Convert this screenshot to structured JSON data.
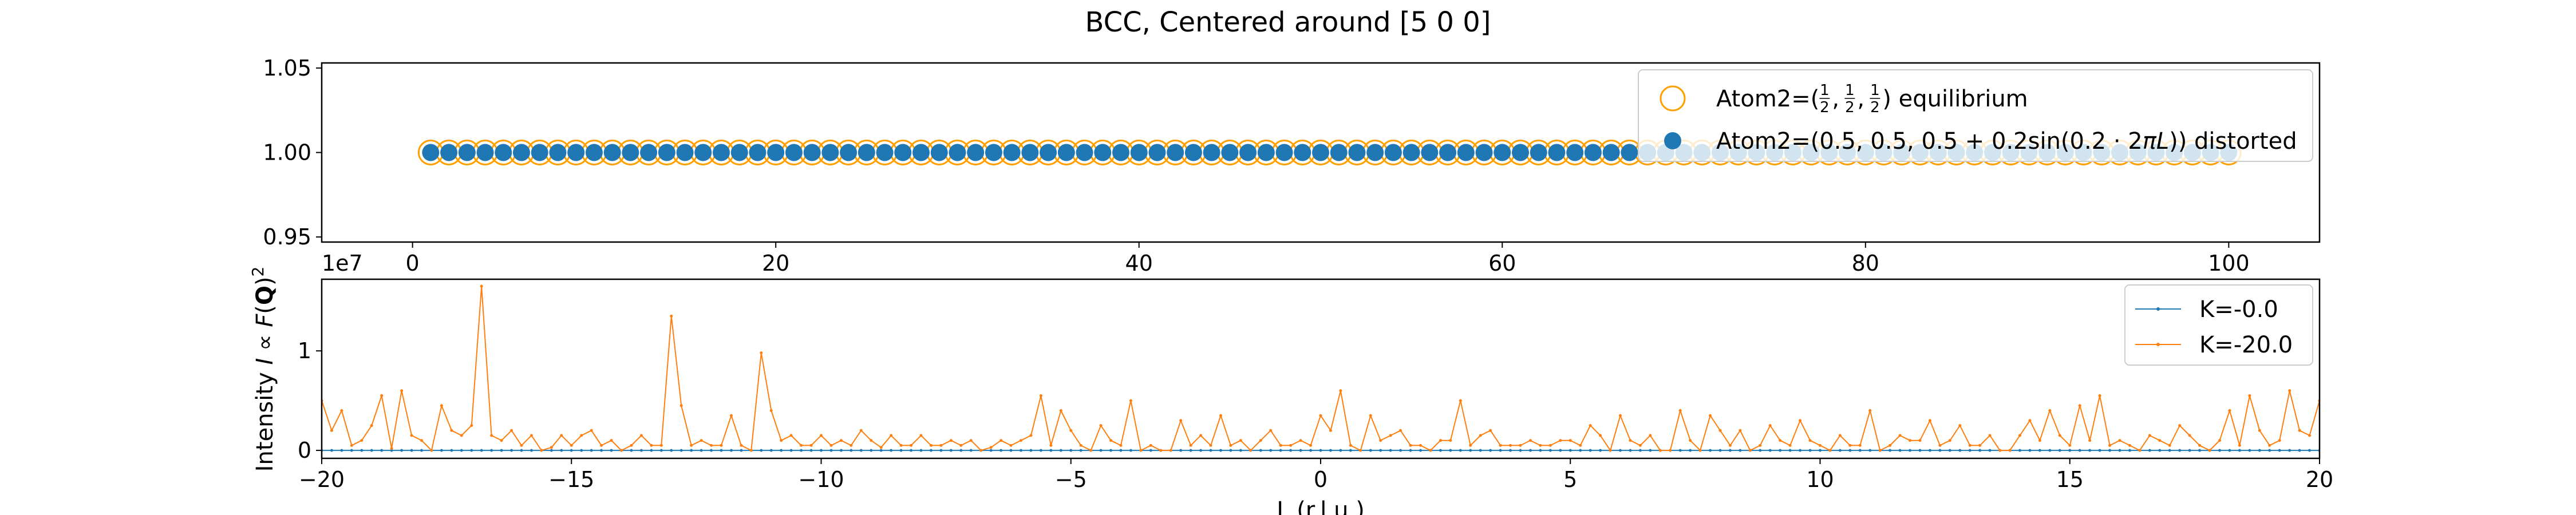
{
  "figure": {
    "title": "BCC, Centered around [5 0 0]"
  },
  "chart_data": [
    {
      "type": "scatter",
      "title": "",
      "xlabel": "",
      "ylabel": "",
      "xlim": [
        -5,
        105
      ],
      "ylim": [
        0.947,
        1.053
      ],
      "xticks": [
        0,
        20,
        40,
        60,
        80,
        100
      ],
      "yticks": [
        0.95,
        1.0,
        1.05
      ],
      "ytick_labels": [
        "0.95",
        "1.00",
        "1.05"
      ],
      "legend_position": "upper right",
      "series": [
        {
          "name": "Atom2=(1/2, 1/2, 1/2) equilibrium",
          "legend_prefix": "Atom2=(",
          "legend_fracs": [
            "1",
            "1",
            "1"
          ],
          "legend_suffix": ") equilibrium",
          "marker": "hollow-circle",
          "color": "#ff9f00",
          "x_start": 1,
          "x_end": 100,
          "x_step": 1,
          "y": 1.0
        },
        {
          "name": "Atom2=(0.5, 0.5, 0.5 + 0.2sin(0.2·2πL)) distorted",
          "legend_text_pre": "Atom2=(0.5, 0.5, 0.5 + 0.2sin(0.2 · 2",
          "legend_text_pi": "πL",
          "legend_text_post": ")) distorted",
          "marker": "filled-circle",
          "color": "#1f77b4",
          "x_start": 1,
          "x_end": 100,
          "x_step": 1,
          "y": 1.0
        }
      ]
    },
    {
      "type": "line",
      "title": "",
      "xlabel": "L (r.l.u.)",
      "ylabel": "Intensity I ∝ F(Q)²",
      "ylabel_parts": {
        "pre": "Intensity ",
        "italic1": "I",
        "mid": " ∝ ",
        "italic2": "F",
        "open": "(",
        "bold": "Q",
        "close": ")",
        "sup": "2"
      },
      "offset_text": "1e7",
      "xlim": [
        -20,
        20
      ],
      "ylim": [
        -0.08,
        1.72
      ],
      "xticks": [
        -20,
        -15,
        -10,
        -5,
        0,
        5,
        10,
        15,
        20
      ],
      "xtick_labels": [
        "−20",
        "−15",
        "−10",
        "−5",
        "0",
        "5",
        "10",
        "15",
        "20"
      ],
      "yticks": [
        0,
        1
      ],
      "ytick_labels": [
        "0",
        "1"
      ],
      "legend_position": "upper right",
      "x_start": -20,
      "x_step": 0.2,
      "series": [
        {
          "name": "K=-0.0",
          "color": "#1f77b4",
          "values": [
            0,
            0,
            0,
            0,
            0,
            0,
            0,
            0,
            0,
            0,
            0,
            0,
            0,
            0,
            0,
            0,
            0,
            0,
            0,
            0,
            0,
            0,
            0,
            0,
            0,
            0,
            0,
            0,
            0,
            0,
            0,
            0,
            0,
            0,
            0,
            0,
            0,
            0,
            0,
            0,
            0,
            0,
            0,
            0,
            0,
            0,
            0,
            0,
            0,
            0,
            0,
            0,
            0,
            0,
            0,
            0,
            0,
            0,
            0,
            0,
            0,
            0,
            0,
            0,
            0,
            0,
            0,
            0,
            0,
            0,
            0,
            0,
            0,
            0,
            0,
            0,
            0,
            0,
            0,
            0,
            0,
            0,
            0,
            0,
            0,
            0,
            0,
            0,
            0,
            0,
            0,
            0,
            0,
            0,
            0,
            0,
            0,
            0,
            0,
            0,
            0,
            0,
            0,
            0,
            0,
            0,
            0,
            0,
            0,
            0,
            0,
            0,
            0,
            0,
            0,
            0,
            0,
            0,
            0,
            0,
            0,
            0,
            0,
            0,
            0,
            0,
            0,
            0,
            0,
            0,
            0,
            0,
            0,
            0,
            0,
            0,
            0,
            0,
            0,
            0,
            0,
            0,
            0,
            0,
            0,
            0,
            0,
            0,
            0,
            0,
            0,
            0,
            0,
            0,
            0,
            0,
            0,
            0,
            0,
            0,
            0,
            0,
            0,
            0,
            0,
            0,
            0,
            0,
            0,
            0,
            0,
            0,
            0,
            0,
            0,
            0,
            0,
            0,
            0,
            0,
            0,
            0,
            0,
            0,
            0,
            0,
            0,
            0,
            0,
            0,
            0,
            0,
            0,
            0,
            0,
            0,
            0,
            0,
            0,
            0,
            0
          ]
        },
        {
          "name": "K=-20.0",
          "color": "#ff7f0e",
          "values": [
            0.5,
            0.2,
            0.4,
            0.05,
            0.1,
            0.25,
            0.55,
            0.02,
            0.6,
            0.15,
            0.1,
            0.0,
            0.45,
            0.2,
            0.15,
            0.25,
            1.65,
            0.15,
            0.1,
            0.2,
            0.05,
            0.15,
            0.0,
            0.03,
            0.15,
            0.05,
            0.15,
            0.2,
            0.05,
            0.1,
            0.0,
            0.05,
            0.15,
            0.05,
            0.05,
            1.35,
            0.45,
            0.05,
            0.1,
            0.05,
            0.05,
            0.35,
            0.05,
            0.0,
            0.98,
            0.4,
            0.1,
            0.15,
            0.05,
            0.05,
            0.15,
            0.05,
            0.1,
            0.05,
            0.2,
            0.1,
            0.03,
            0.15,
            0.05,
            0.05,
            0.15,
            0.05,
            0.05,
            0.1,
            0.05,
            0.1,
            0.0,
            0.03,
            0.1,
            0.05,
            0.1,
            0.15,
            0.55,
            0.05,
            0.4,
            0.2,
            0.05,
            0.0,
            0.25,
            0.1,
            0.05,
            0.5,
            0.0,
            0.05,
            0.0,
            0.0,
            0.3,
            0.05,
            0.15,
            0.05,
            0.35,
            0.05,
            0.1,
            0.0,
            0.1,
            0.2,
            0.05,
            0.05,
            0.1,
            0.05,
            0.35,
            0.2,
            0.6,
            0.05,
            0.0,
            0.35,
            0.1,
            0.15,
            0.2,
            0.05,
            0.05,
            0.0,
            0.1,
            0.1,
            0.5,
            0.05,
            0.15,
            0.2,
            0.05,
            0.05,
            0.05,
            0.1,
            0.05,
            0.05,
            0.1,
            0.1,
            0.05,
            0.25,
            0.15,
            0.0,
            0.35,
            0.1,
            0.05,
            0.15,
            0.0,
            0.0,
            0.4,
            0.1,
            0.0,
            0.35,
            0.2,
            0.05,
            0.2,
            0.0,
            0.05,
            0.25,
            0.1,
            0.05,
            0.3,
            0.1,
            0.05,
            0.0,
            0.15,
            0.05,
            0.05,
            0.4,
            0.0,
            0.05,
            0.15,
            0.1,
            0.1,
            0.3,
            0.05,
            0.1,
            0.25,
            0.05,
            0.05,
            0.15,
            0.0,
            0.0,
            0.15,
            0.3,
            0.1,
            0.4,
            0.15,
            0.05,
            0.45,
            0.1,
            0.55,
            0.05,
            0.1,
            0.05,
            0.0,
            0.15,
            0.1,
            0.05,
            0.25,
            0.15,
            0.05,
            0.0,
            0.1,
            0.4,
            0.05,
            0.55,
            0.2,
            0.05,
            0.1,
            0.6,
            0.2,
            0.15,
            0.5,
            0.1,
            0.05
          ]
        }
      ]
    }
  ]
}
